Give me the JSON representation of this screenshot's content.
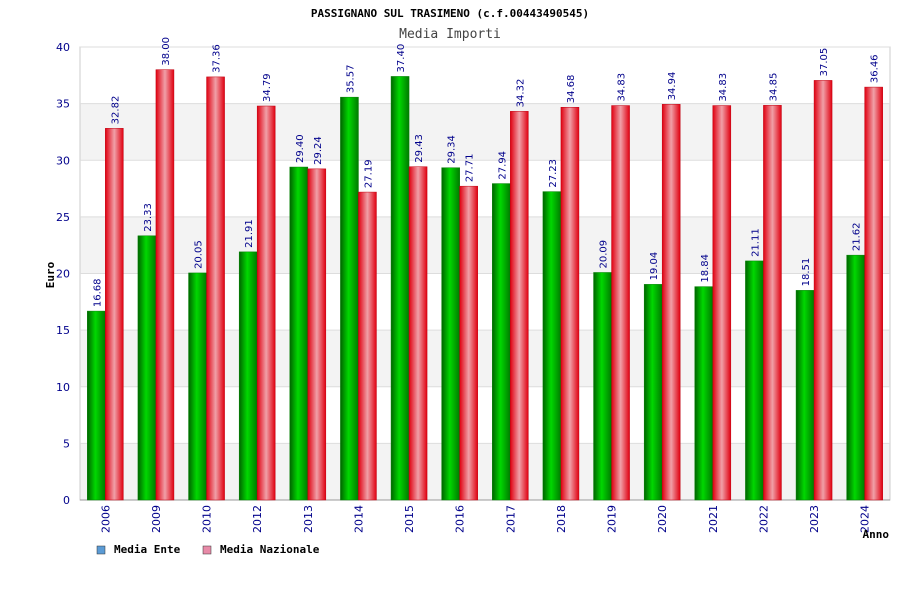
{
  "chart_data": {
    "type": "bar",
    "title": "PASSIGNANO SUL TRASIMENO (c.f.00443490545)",
    "subtitle": "Media Importi",
    "xlabel": "Anno",
    "ylabel": "Euro",
    "ylim": [
      0,
      40
    ],
    "yticks": [
      0,
      5,
      10,
      15,
      20,
      25,
      30,
      35,
      40
    ],
    "grid": true,
    "legend_position": "bottom-left",
    "categories": [
      "2006",
      "2009",
      "2010",
      "2012",
      "2013",
      "2014",
      "2015",
      "2016",
      "2017",
      "2018",
      "2019",
      "2020",
      "2021",
      "2022",
      "2023",
      "2024"
    ],
    "series": [
      {
        "name": "Media Ente",
        "color": "#00b000",
        "legend_color": "#5b9bd5",
        "values": [
          16.68,
          23.33,
          20.05,
          21.91,
          29.4,
          35.57,
          37.4,
          29.34,
          27.94,
          27.23,
          20.09,
          19.04,
          18.84,
          21.11,
          18.51,
          21.62
        ],
        "labels": [
          "16.68",
          "23.33",
          "20.05",
          "21.91",
          "29.40",
          "35.57",
          "37.40",
          "29.34",
          "27.94",
          "27.23",
          "20.09",
          "19.04",
          "18.84",
          "21.11",
          "18.51",
          "21.62"
        ]
      },
      {
        "name": "Media Nazionale",
        "color": "#e8202a",
        "legend_color": "#e88aa8",
        "values": [
          32.82,
          38.0,
          37.36,
          34.79,
          29.24,
          27.19,
          29.43,
          27.71,
          34.32,
          34.68,
          34.83,
          34.94,
          34.83,
          34.85,
          37.05,
          36.46
        ],
        "labels": [
          "32.82",
          "38.00",
          "37.36",
          "34.79",
          "29.24",
          "27.19",
          "29.43",
          "27.71",
          "34.32",
          "34.68",
          "34.83",
          "34.94",
          "34.83",
          "34.85",
          "37.05",
          "36.46"
        ]
      }
    ]
  }
}
